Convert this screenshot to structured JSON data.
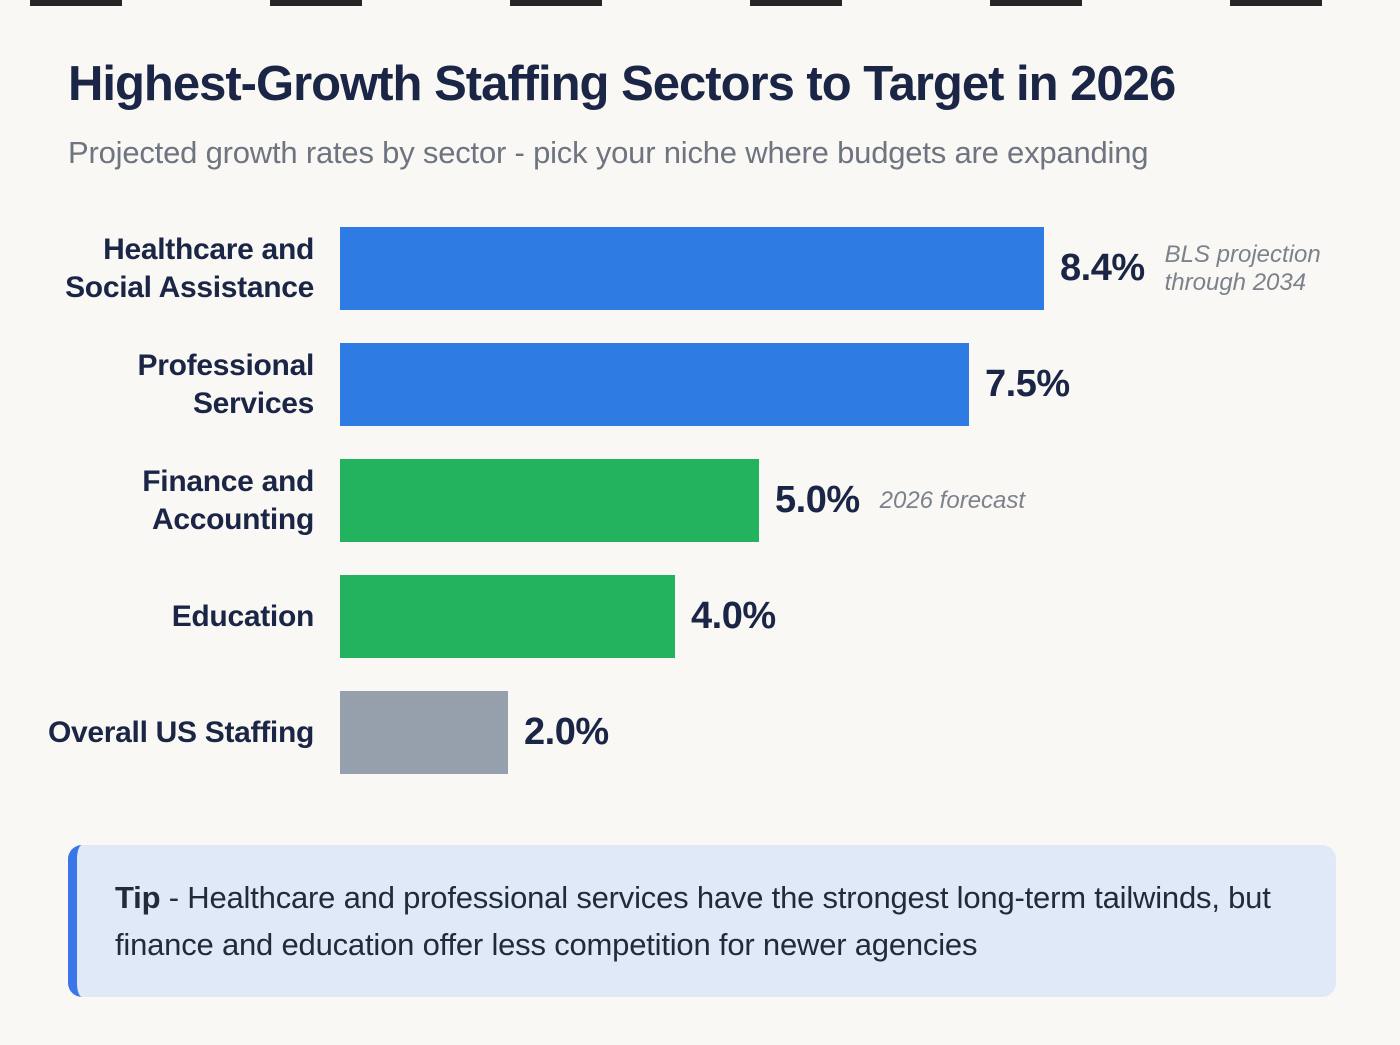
{
  "header": {
    "title": "Highest-Growth Staffing Sectors to Target in 2026",
    "subtitle": "Projected growth rates by sector - pick your niche where budgets are expanding"
  },
  "chart_data": {
    "type": "bar",
    "orientation": "horizontal",
    "title": "Highest-Growth Staffing Sectors to Target in 2026",
    "xlabel": "",
    "ylabel": "",
    "xlim": [
      0,
      8.4
    ],
    "grid": false,
    "legend": false,
    "categories": [
      "Healthcare and Social Assistance",
      "Professional Services",
      "Finance and Accounting",
      "Education",
      "Overall US Staffing"
    ],
    "label_lines": [
      [
        "Healthcare and",
        "Social Assistance"
      ],
      [
        "Professional",
        "Services"
      ],
      [
        "Finance and",
        "Accounting"
      ],
      [
        "Education"
      ],
      [
        "Overall US Staffing"
      ]
    ],
    "values": [
      8.4,
      7.5,
      5.0,
      4.0,
      2.0
    ],
    "value_labels": [
      "8.4%",
      "7.5%",
      "5.0%",
      "4.0%",
      "2.0%"
    ],
    "bar_colors": [
      "#2D7BE3",
      "#2D7BE3",
      "#23B25D",
      "#23B25D",
      "#96A0AD"
    ],
    "annotations": [
      "BLS projection through 2034",
      "",
      "2026 forecast",
      "",
      ""
    ]
  },
  "tip": {
    "label": "Tip",
    "text": "- Healthcare and professional services have the strongest long-term tailwinds, but finance and education offer less competition for newer agencies"
  },
  "colors": {
    "background": "#F9F8F4",
    "heading_text": "#1B2646",
    "subtitle_text": "#6E7480",
    "annotation_text": "#7C828C",
    "bar_blue": "#2D7BE3",
    "bar_green": "#23B25D",
    "bar_gray": "#96A0AD",
    "tip_background": "#DFE9F7",
    "tip_border": "#3B76E8"
  }
}
